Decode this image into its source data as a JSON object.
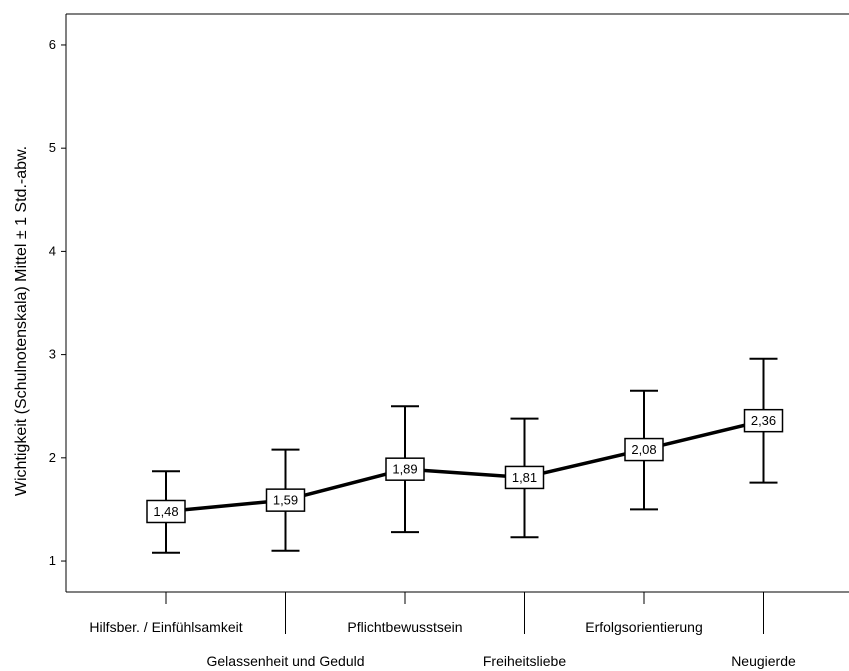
{
  "chart_data": {
    "type": "line",
    "title": "",
    "xlabel": "",
    "ylabel": "Wichtigkeit (Schulnotenskala) Mittel ± 1 Std.-abw.",
    "ylim": [
      0.7,
      6.3
    ],
    "yticks": [
      1,
      2,
      3,
      4,
      5,
      6
    ],
    "grid": false,
    "error_bars": true,
    "categories": [
      "Hilfsber. / Einfühlsamkeit",
      "Gelassenheit und Geduld",
      "Pflichtbewusstsein",
      "Freiheitsliebe",
      "Erfolgsorientierung",
      "Neugierde"
    ],
    "series": [
      {
        "values": [
          1.48,
          1.59,
          1.89,
          1.81,
          2.08,
          2.36
        ],
        "labels": [
          "1,48",
          "1,59",
          "1,89",
          "1,81",
          "2,08",
          "2,36"
        ],
        "upper": [
          1.87,
          2.08,
          2.5,
          2.38,
          2.65,
          2.96
        ],
        "lower": [
          1.08,
          1.1,
          1.28,
          1.23,
          1.5,
          1.76
        ]
      }
    ]
  }
}
